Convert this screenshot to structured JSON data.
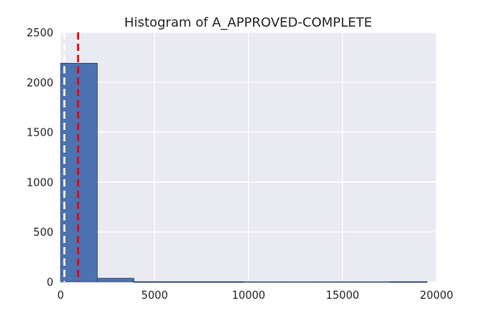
{
  "chart_data": {
    "type": "histogram",
    "title": "Histogram of A_APPROVED-COMPLETE",
    "xlabel": "",
    "ylabel": "",
    "xlim": [
      0,
      20000
    ],
    "ylim": [
      0,
      2500
    ],
    "x_ticks": [
      0,
      5000,
      10000,
      15000,
      20000
    ],
    "y_ticks": [
      0,
      500,
      1000,
      1500,
      2000,
      2500
    ],
    "grid": true,
    "bins": [
      {
        "x0": 0,
        "x1": 1950,
        "count": 2190
      },
      {
        "x0": 1950,
        "x1": 3900,
        "count": 35
      },
      {
        "x0": 3900,
        "x1": 5850,
        "count": 1
      },
      {
        "x0": 5850,
        "x1": 7800,
        "count": 1
      },
      {
        "x0": 7800,
        "x1": 9750,
        "count": 1
      },
      {
        "x0": 9750,
        "x1": 11700,
        "count": 0
      },
      {
        "x0": 11700,
        "x1": 13650,
        "count": 0
      },
      {
        "x0": 13650,
        "x1": 15600,
        "count": 0
      },
      {
        "x0": 15600,
        "x1": 17550,
        "count": 0
      },
      {
        "x0": 17550,
        "x1": 19500,
        "count": 1
      }
    ],
    "reference_lines": [
      {
        "x": 200,
        "style": "dashed",
        "color": "#ffffff"
      },
      {
        "x": 930,
        "style": "dashed",
        "color": "#e8000b"
      }
    ],
    "colors": {
      "bar": "#4c72b0",
      "bar_edge": "#2a3f66",
      "background": "#eaeaf2",
      "grid": "#ffffff"
    }
  }
}
